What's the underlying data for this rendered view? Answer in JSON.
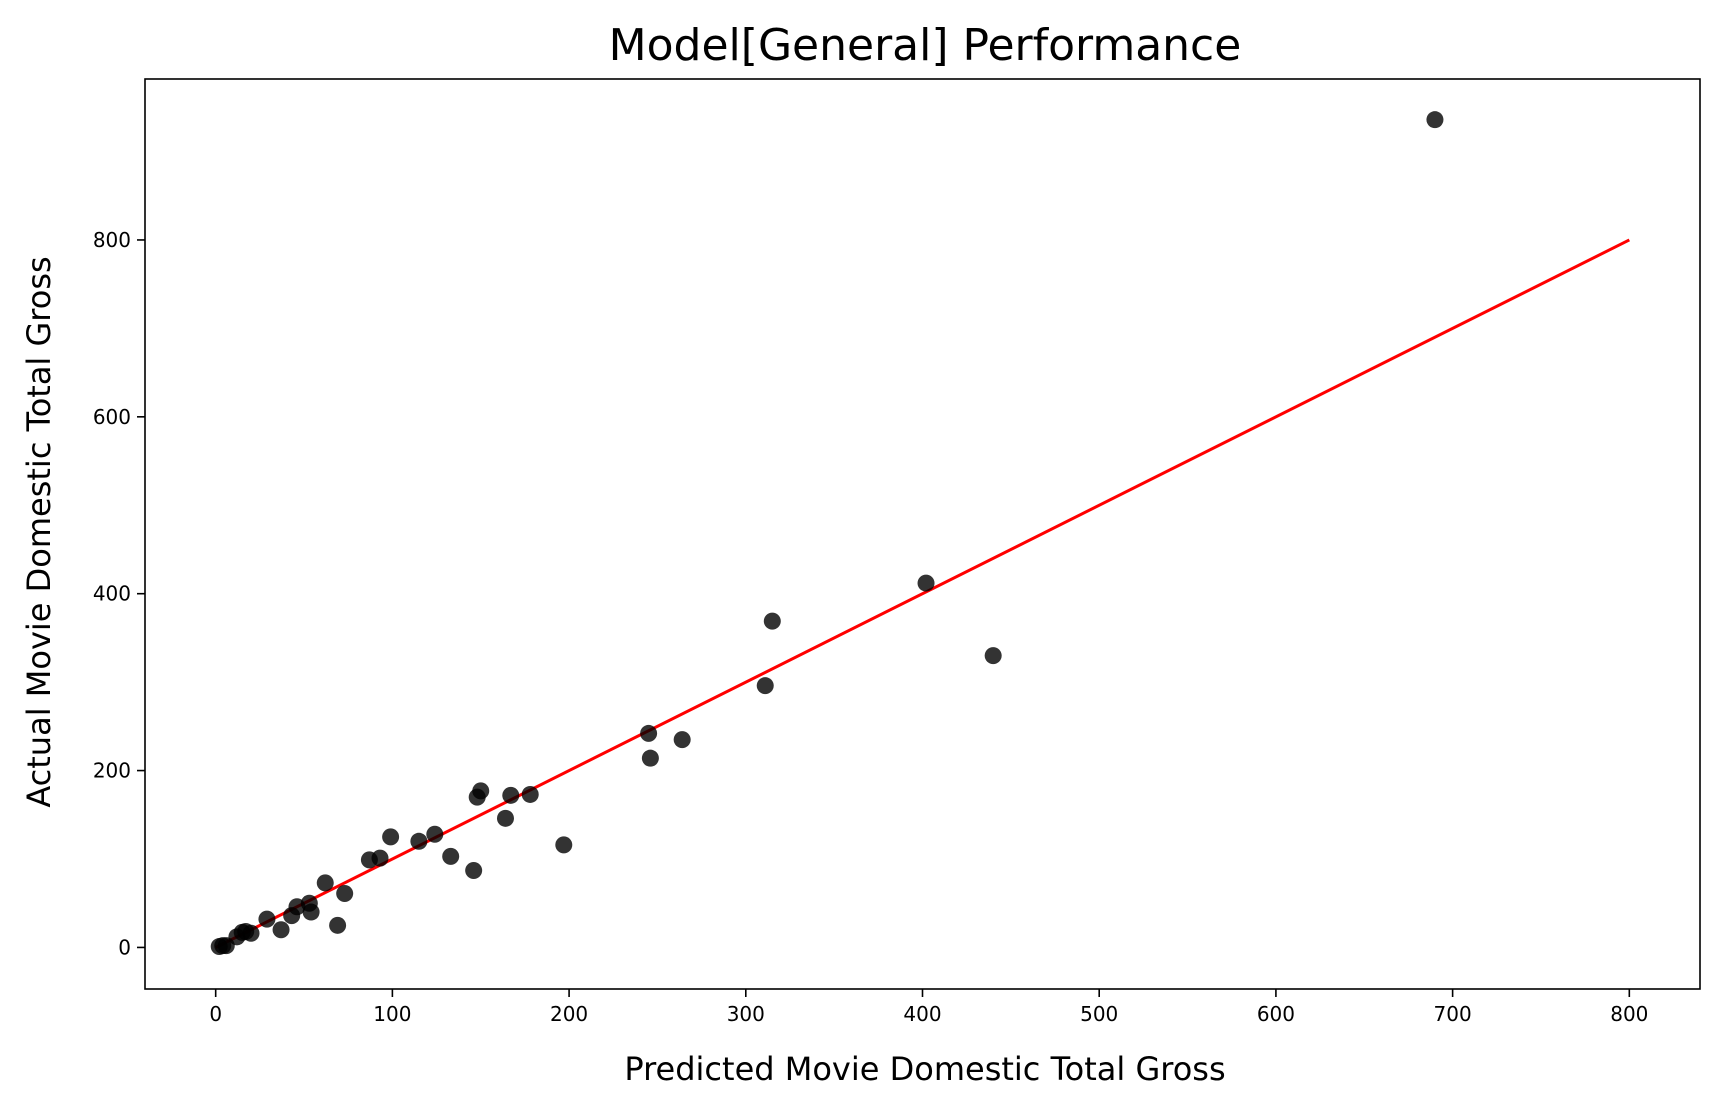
{
  "colors": {
    "marker": "#000000",
    "fit_line": "#ff0000",
    "axes": "#000000",
    "background": "#ffffff"
  },
  "chart_data": {
    "type": "scatter",
    "title": "Model[General] Performance",
    "xlabel": "Predicted Movie Domestic Total Gross",
    "ylabel": "Actual Movie Domestic Total Gross",
    "xlim": [
      -40,
      840
    ],
    "ylim": [
      -47,
      982
    ],
    "xticks": [
      0,
      100,
      200,
      300,
      400,
      500,
      600,
      700,
      800
    ],
    "yticks": [
      0,
      200,
      400,
      600,
      800
    ],
    "grid": false,
    "legend": "none",
    "series": [
      {
        "marker": "circle",
        "color": "#000000",
        "x": [
          2,
          4,
          6,
          12,
          15,
          17,
          20,
          29,
          37,
          43,
          46,
          53,
          54,
          62,
          69,
          73,
          87,
          93,
          99,
          115,
          124,
          133,
          146,
          148,
          150,
          164,
          167,
          178,
          197,
          245,
          246,
          264,
          311,
          315,
          402,
          440,
          690
        ],
        "y": [
          1,
          2,
          2,
          12,
          17,
          18,
          16,
          32,
          20,
          36,
          46,
          50,
          40,
          73,
          25,
          61,
          99,
          101,
          125,
          120,
          128,
          103,
          87,
          170,
          177,
          146,
          172,
          173,
          116,
          242,
          214,
          235,
          296,
          369,
          412,
          330,
          936
        ]
      },
      {
        "type": "line",
        "color": "#ff0000",
        "x": [
          0,
          800
        ],
        "y": [
          0,
          800
        ]
      }
    ]
  }
}
